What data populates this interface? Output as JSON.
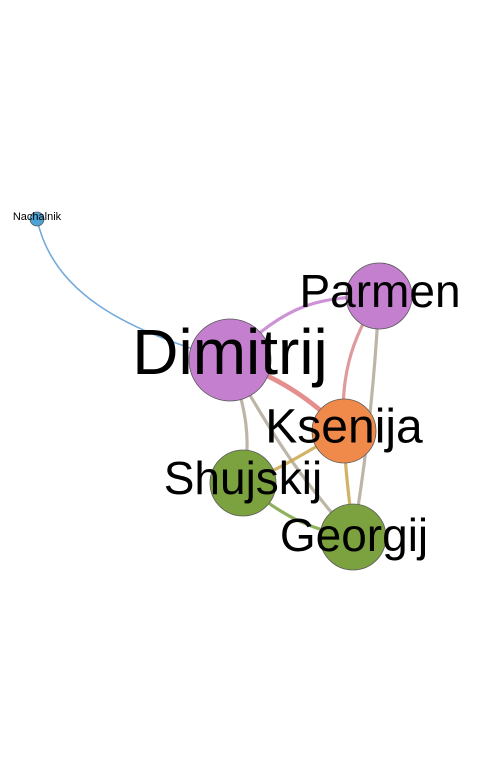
{
  "graph": {
    "nodes": [
      {
        "id": "nachalnik",
        "label": "Nachalnik",
        "color": "#4ba3d6",
        "size": "small"
      },
      {
        "id": "parmen",
        "label": "Parmen",
        "color": "#c47fcf",
        "size": "medium"
      },
      {
        "id": "dimitrij",
        "label": "Dimitrij",
        "color": "#c47fcf",
        "size": "large"
      },
      {
        "id": "ksenija",
        "label": "Ksenija",
        "color": "#f08a4b",
        "size": "medium"
      },
      {
        "id": "shujskij",
        "label": "Shujskij",
        "color": "#7ba23f",
        "size": "medium"
      },
      {
        "id": "georgij",
        "label": "Georgij",
        "color": "#7ba23f",
        "size": "medium"
      }
    ],
    "edges": [
      {
        "source": "nachalnik",
        "target": "dimitrij",
        "color": "#5b9bd5",
        "weight": 1
      },
      {
        "source": "dimitrij",
        "target": "parmen",
        "color": "#c47fcf",
        "weight": 2
      },
      {
        "source": "dimitrij",
        "target": "ksenija",
        "color": "#e07a7a",
        "weight": 3
      },
      {
        "source": "dimitrij",
        "target": "shujskij",
        "color": "#b3a89a",
        "weight": 2
      },
      {
        "source": "dimitrij",
        "target": "georgij",
        "color": "#b3a89a",
        "weight": 2
      },
      {
        "source": "parmen",
        "target": "ksenija",
        "color": "#d98a8a",
        "weight": 2
      },
      {
        "source": "parmen",
        "target": "georgij",
        "color": "#b3a89a",
        "weight": 2
      },
      {
        "source": "ksenija",
        "target": "shujskij",
        "color": "#c9a64a",
        "weight": 2
      },
      {
        "source": "ksenija",
        "target": "georgij",
        "color": "#c9a64a",
        "weight": 2
      },
      {
        "source": "shujskij",
        "target": "georgij",
        "color": "#7ba23f",
        "weight": 2
      }
    ]
  }
}
